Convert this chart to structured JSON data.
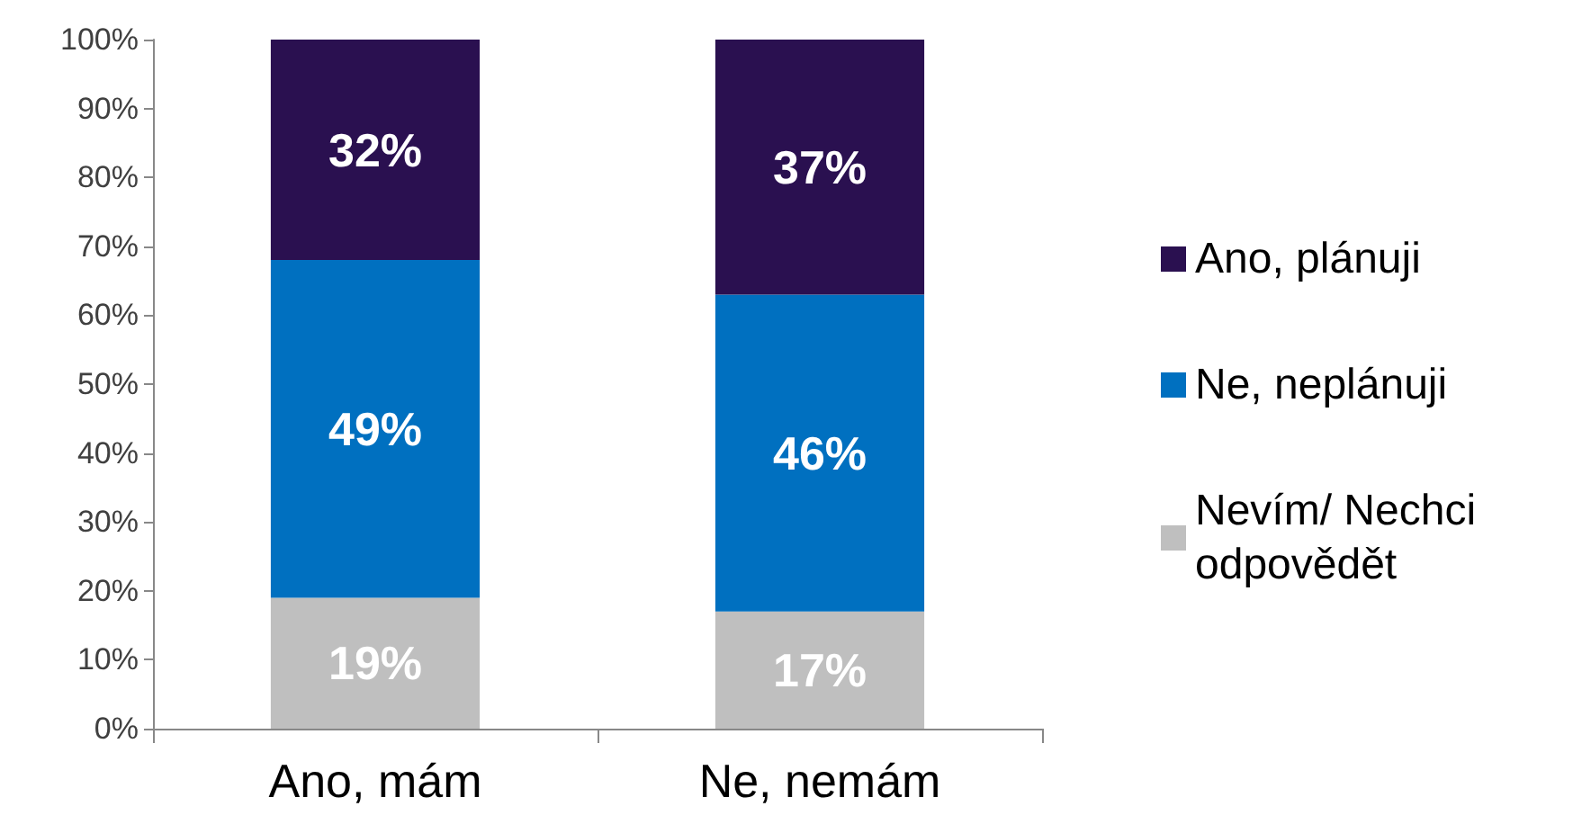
{
  "chart_data": {
    "type": "bar",
    "stacked": true,
    "categories": [
      "Ano, mám",
      "Ne, nemám"
    ],
    "series": [
      {
        "name": "Nevím/ Nechci odpovědět",
        "color": "#bfbfbf",
        "values": [
          19,
          17
        ],
        "value_labels": [
          "19%",
          "17%"
        ]
      },
      {
        "name": "Ne, neplánuji",
        "color": "#0070c0",
        "values": [
          49,
          46
        ],
        "value_labels": [
          "49%",
          "46%"
        ]
      },
      {
        "name": "Ano, plánuji",
        "color": "#2a1050",
        "values": [
          32,
          37
        ],
        "value_labels": [
          "32%",
          "37%"
        ]
      }
    ],
    "ylim": [
      0,
      100
    ],
    "yticks": [
      {
        "value": 0,
        "label": "0%"
      },
      {
        "value": 10,
        "label": "10%"
      },
      {
        "value": 20,
        "label": "20%"
      },
      {
        "value": 30,
        "label": "30%"
      },
      {
        "value": 40,
        "label": "40%"
      },
      {
        "value": 50,
        "label": "50%"
      },
      {
        "value": 60,
        "label": "60%"
      },
      {
        "value": 70,
        "label": "70%"
      },
      {
        "value": 80,
        "label": "80%"
      },
      {
        "value": 90,
        "label": "90%"
      },
      {
        "value": 100,
        "label": "100%"
      }
    ],
    "grid": false,
    "legend": "right"
  }
}
